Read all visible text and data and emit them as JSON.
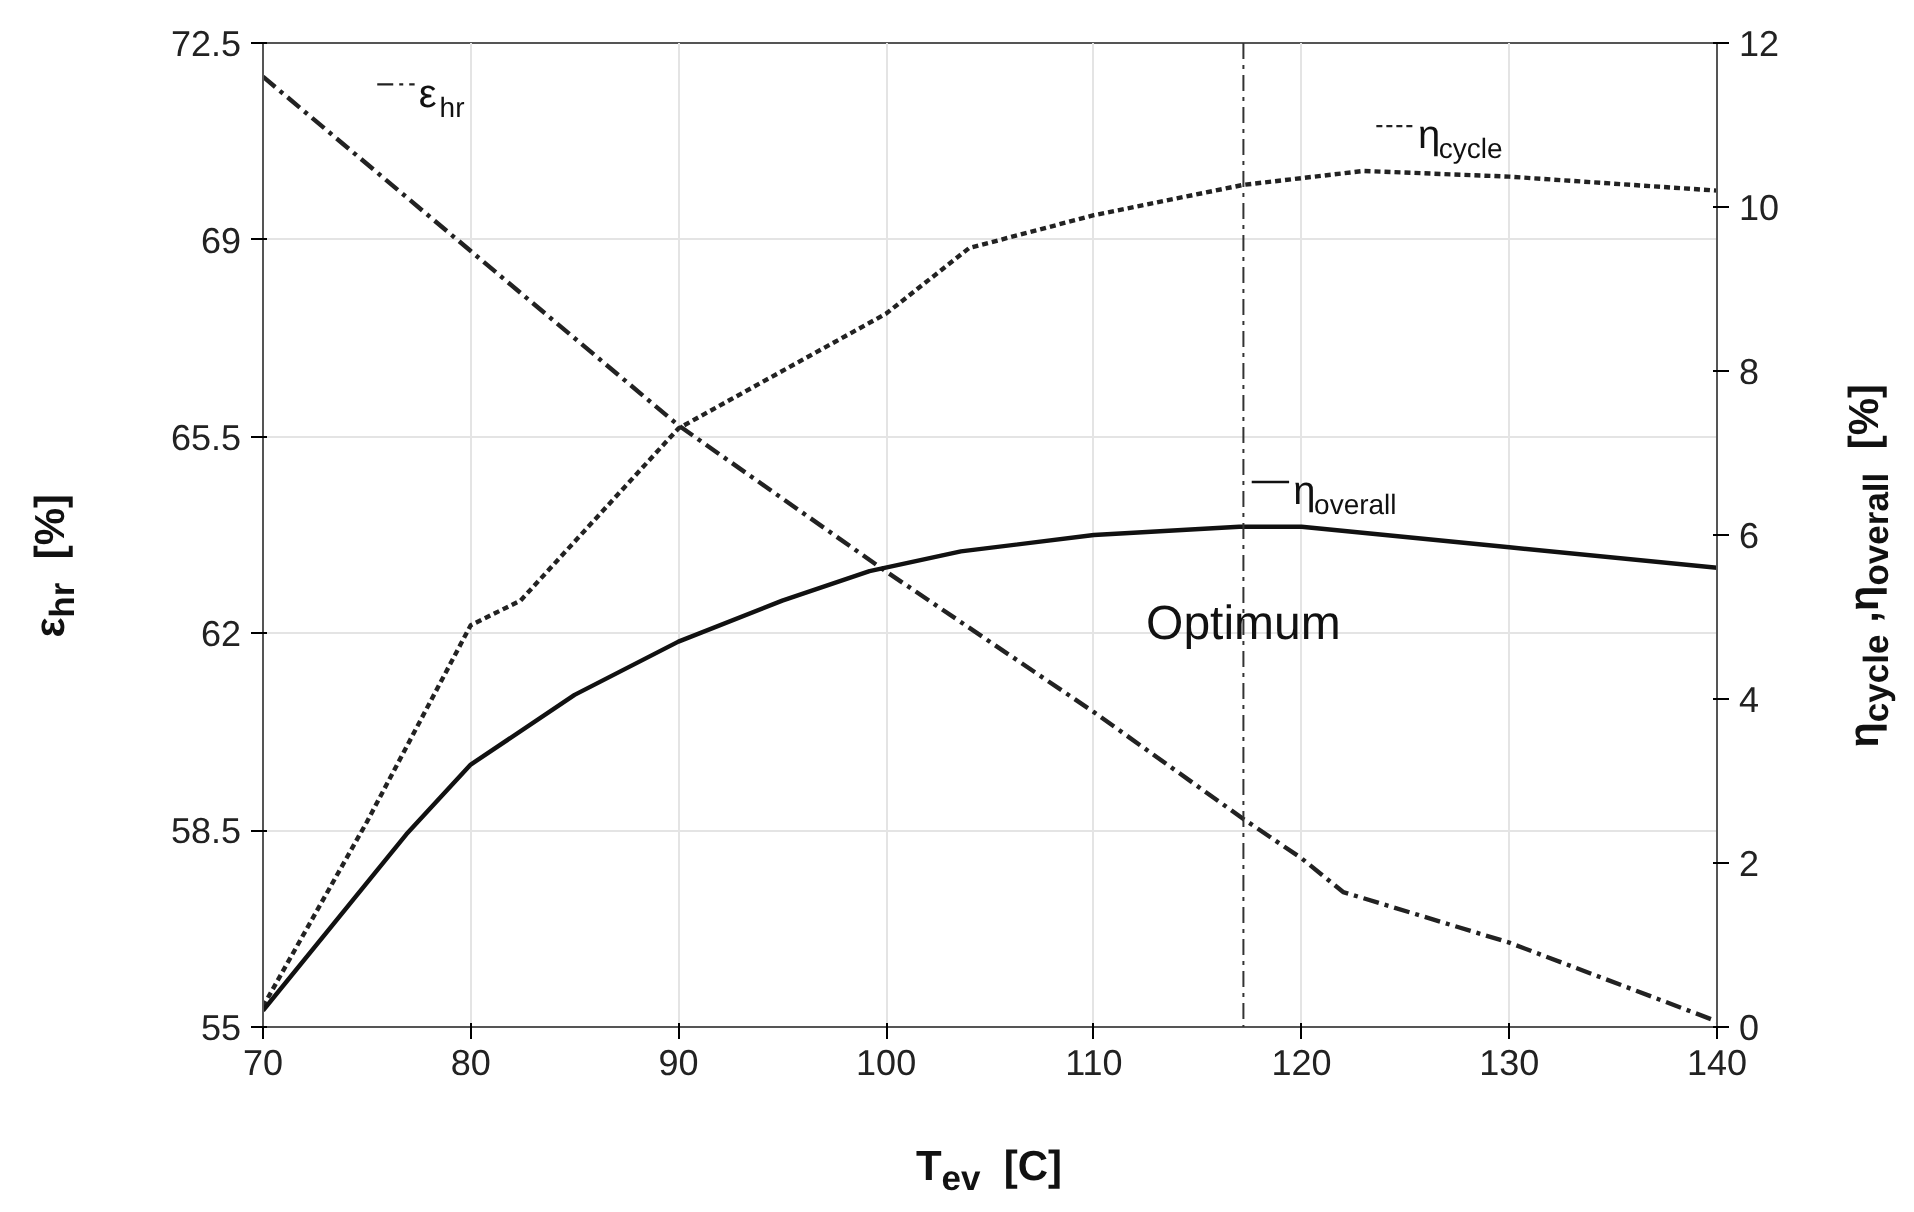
{
  "chart_data": {
    "type": "line",
    "xlabel": "T$_{ev}$  [C]",
    "ylabel": "ε$_{hr}$  [%]",
    "y2label": "η$_{cycle}$ ,η$_{overall}$  [%]",
    "xlim": [
      70,
      140
    ],
    "xticks": [
      70,
      80,
      90,
      100,
      110,
      120,
      130,
      140
    ],
    "ylim": [
      55,
      72.5
    ],
    "yticks": [
      55,
      58.5,
      62,
      65.5,
      69,
      72.5
    ],
    "y2lim": [
      0,
      12
    ],
    "y2ticks": [
      0,
      2,
      4,
      6,
      8,
      10,
      12
    ],
    "grid": true,
    "legend": "top",
    "ref_lines": [
      {
        "axis": "x",
        "value": 117.2,
        "label": "Optimum",
        "line_style": "dashed",
        "color": "#333333"
      }
    ],
    "series": [
      {
        "name": "ε$_{hr}$",
        "color": "#222222",
        "line_style": "dashed",
        "x": [
          70,
          80,
          90,
          100,
          110,
          117.2,
          120,
          122,
          130,
          140
        ],
        "values": [
          71.9,
          68.8,
          65.7,
          63.1,
          60.6,
          58.7,
          58.0,
          57.4,
          56.5,
          55.1
        ]
      },
      {
        "name": "η$_{cycle}$",
        "color": "#222222",
        "line_style": "dotted",
        "axis": "y2",
        "x": [
          70,
          75,
          80,
          82.4,
          90,
          100,
          104,
          110,
          117.2,
          123,
          130,
          140
        ],
        "values": [
          0.25,
          2.5,
          4.9,
          5.2,
          7.3,
          8.7,
          9.5,
          9.9,
          10.27,
          10.44,
          10.37,
          10.2
        ]
      },
      {
        "name": "η$_{overall}$",
        "color": "#111111",
        "line_style": "solid",
        "axis": "y2",
        "x": [
          70,
          76.9,
          80,
          85,
          90,
          95,
          99.2,
          103.6,
          110,
          117,
          120,
          130,
          140
        ],
        "values": [
          0.2,
          2.35,
          3.2,
          4.05,
          4.7,
          5.2,
          5.56,
          5.8,
          6.0,
          6.1,
          6.1,
          5.85,
          5.6
        ]
      }
    ]
  }
}
